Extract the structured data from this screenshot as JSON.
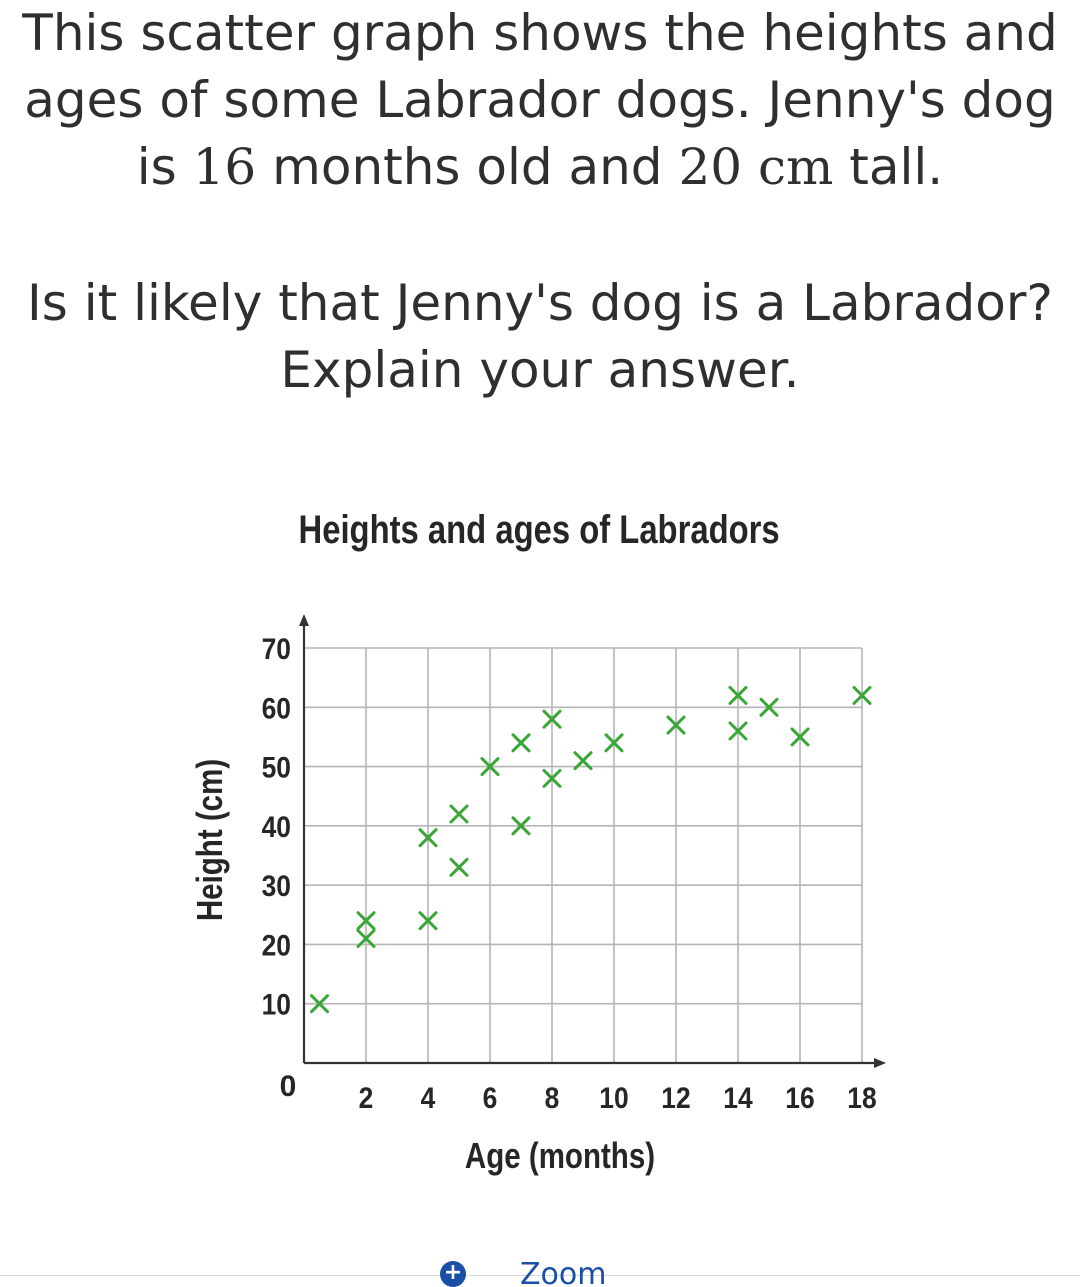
{
  "question": {
    "intro_lines": [
      "This scatter graph shows the heights and",
      "ages of some Labrador dogs. Jenny's dog",
      [
        "is ",
        "16",
        " months old and ",
        "20",
        " cm",
        " tall."
      ]
    ],
    "prompt_lines": [
      "Is it likely that Jenny's dog is a Labrador?",
      "Explain your answer."
    ]
  },
  "footer": {
    "zoom_label": "Zoom",
    "zoom_icon": "plus-circle-icon"
  },
  "colors": {
    "marker": "#3aa637",
    "grid": "#b5b5b5",
    "axis": "#333333",
    "text": "#2f2f2f",
    "link": "#1a4fa8"
  },
  "chart_data": {
    "type": "scatter",
    "title": "Heights and ages of Labradors",
    "xlabel": "Age (months)",
    "ylabel": "Height (cm)",
    "xlim": [
      0,
      18
    ],
    "ylim": [
      0,
      70
    ],
    "x_ticks": [
      2,
      4,
      6,
      8,
      10,
      12,
      14,
      16,
      18
    ],
    "y_ticks": [
      10,
      20,
      30,
      40,
      50,
      60,
      70
    ],
    "origin_label": "0",
    "grid": true,
    "marker": "x",
    "points": [
      {
        "x": 0.5,
        "y": 10
      },
      {
        "x": 2,
        "y": 21
      },
      {
        "x": 2,
        "y": 24
      },
      {
        "x": 4,
        "y": 24
      },
      {
        "x": 4,
        "y": 38
      },
      {
        "x": 5,
        "y": 33
      },
      {
        "x": 5,
        "y": 42
      },
      {
        "x": 6,
        "y": 50
      },
      {
        "x": 7,
        "y": 40
      },
      {
        "x": 7,
        "y": 54
      },
      {
        "x": 8,
        "y": 48
      },
      {
        "x": 8,
        "y": 58
      },
      {
        "x": 9,
        "y": 51
      },
      {
        "x": 10,
        "y": 54
      },
      {
        "x": 12,
        "y": 57
      },
      {
        "x": 14,
        "y": 56
      },
      {
        "x": 14,
        "y": 62
      },
      {
        "x": 15,
        "y": 60
      },
      {
        "x": 16,
        "y": 55
      },
      {
        "x": 18,
        "y": 62
      }
    ]
  }
}
